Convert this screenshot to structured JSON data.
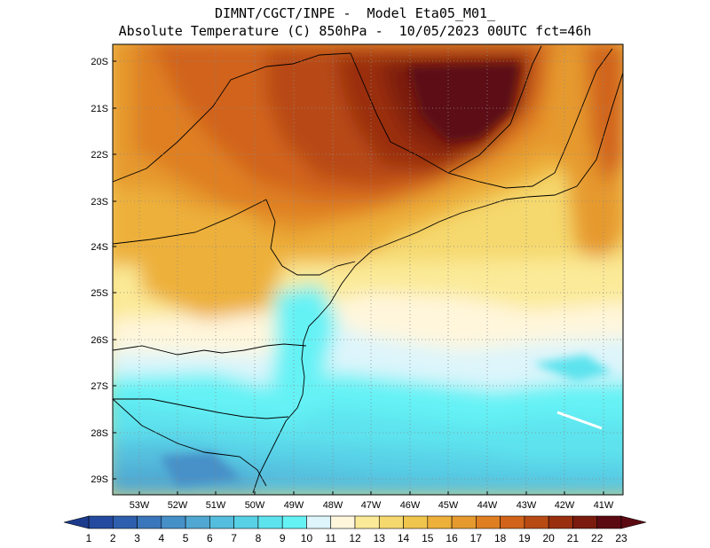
{
  "header": {
    "line1": "DIMNT/CGCT/INPE -  Model Eta05_M01_",
    "line2": "Absolute Temperature (C) 850hPa -  10/05/2023 00UTC fct=46h"
  },
  "axes": {
    "lat_labels": [
      "20S",
      "21S",
      "22S",
      "23S",
      "24S",
      "25S",
      "26S",
      "27S",
      "28S",
      "29S"
    ],
    "lon_labels": [
      "53W",
      "52W",
      "51W",
      "50W",
      "49W",
      "48W",
      "47W",
      "46W",
      "45W",
      "44W",
      "43W",
      "42W",
      "41W"
    ]
  },
  "colorbar": {
    "labels": [
      "1",
      "2",
      "3",
      "4",
      "5",
      "6",
      "7",
      "8",
      "9",
      "10",
      "11",
      "12",
      "13",
      "14",
      "15",
      "16",
      "17",
      "18",
      "19",
      "20",
      "21",
      "22",
      "23"
    ],
    "colors": [
      "#1c3b8c",
      "#244aa0",
      "#2e5fae",
      "#3a76bb",
      "#4690c8",
      "#50a8d2",
      "#55bddd",
      "#58d0e6",
      "#5de3ee",
      "#65f2f5",
      "#ddf5fb",
      "#fff6dc",
      "#fbea98",
      "#f5d86e",
      "#f0c54d",
      "#edb03a",
      "#e69a2e",
      "#df7f22",
      "#d1641a",
      "#b84a14",
      "#9a2f10",
      "#7a1b0e",
      "#5c0a12"
    ]
  },
  "chart_data": {
    "type": "heatmap",
    "title": "Absolute Temperature (C) 850hPa",
    "units": "C",
    "level": "850hPa",
    "lat_range": [
      "29.5S",
      "19.5S"
    ],
    "lon_range": [
      "53.9W",
      "40.6W"
    ],
    "legend": "bottom colorbar, 1 to 23"
  }
}
